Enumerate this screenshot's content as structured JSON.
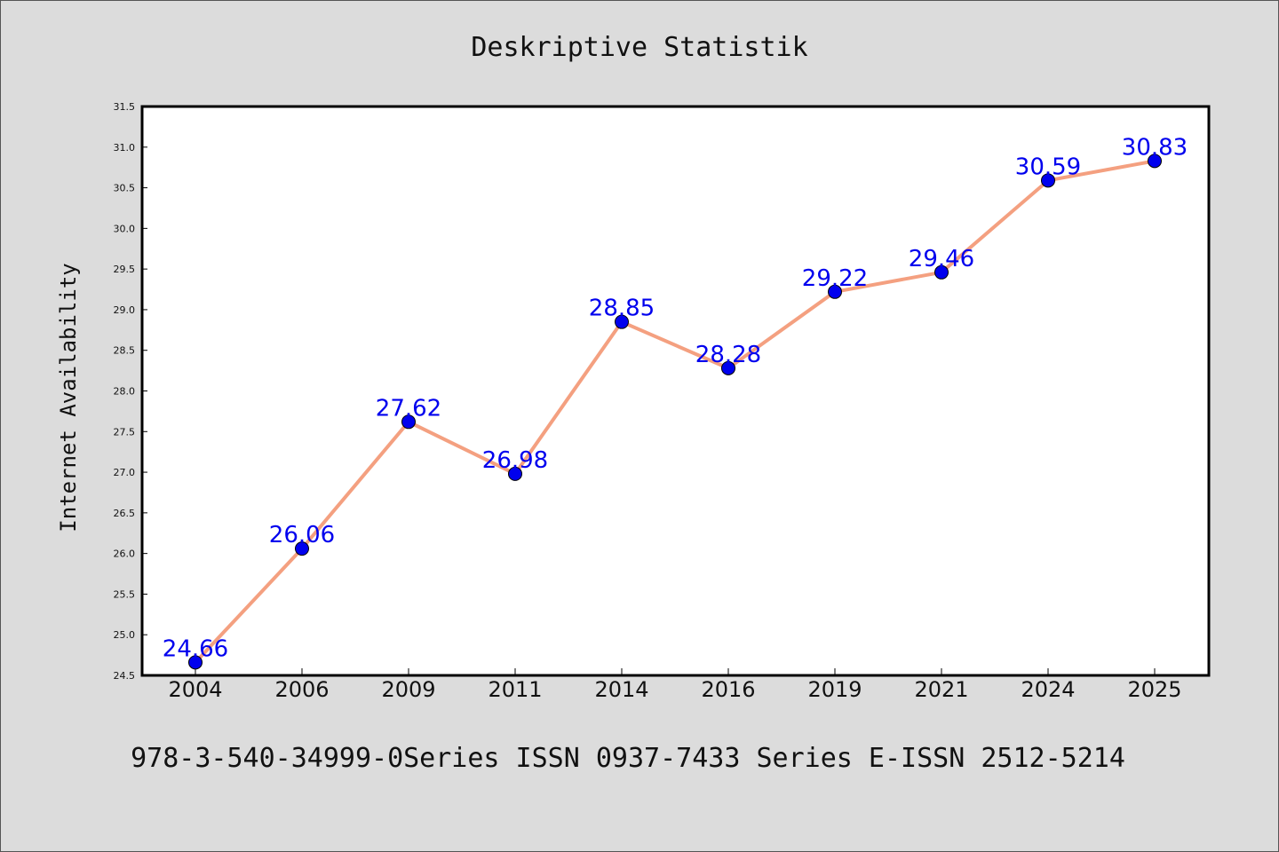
{
  "colors": {
    "page_background": "#dcdcdc",
    "plot_background": "#ffffff",
    "line": "#f4a080",
    "marker": "#0000ee",
    "data_label": "#0000ee",
    "text": "#111111"
  },
  "footer": "978-3-540-34999-0Series ISSN 0937-7433 Series E-ISSN 2512-5214",
  "chart_data": {
    "type": "line",
    "title": "Deskriptive Statistik",
    "xlabel": "",
    "ylabel": "Internet Availability",
    "categories": [
      "2004",
      "2006",
      "2009",
      "2011",
      "2014",
      "2016",
      "2019",
      "2021",
      "2024",
      "2025"
    ],
    "series": [
      {
        "values": [
          24.66,
          26.06,
          27.62,
          26.98,
          28.85,
          28.28,
          29.22,
          29.46,
          30.59,
          30.83
        ],
        "labels": [
          "24.66",
          "26.06",
          "27.62",
          "26.98",
          "28.85",
          "28.28",
          "29.22",
          "29.46",
          "30.59",
          "30.83"
        ]
      }
    ],
    "ylim": [
      24.5,
      31.5
    ],
    "yticks": [
      "24.5",
      "25.0",
      "25.5",
      "26.0",
      "26.5",
      "27.0",
      "27.5",
      "28.0",
      "28.5",
      "29.0",
      "29.5",
      "30.0",
      "30.5",
      "31.0",
      "31.5"
    ],
    "grid": false,
    "legend": "none",
    "marker": "circle"
  }
}
